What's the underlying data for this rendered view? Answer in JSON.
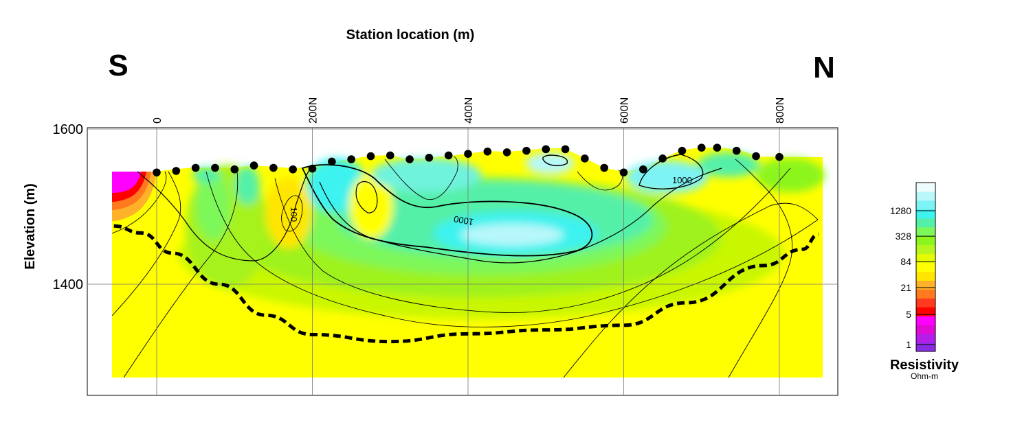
{
  "chart_data": {
    "type": "heatmap",
    "title": "Station location (m)",
    "ylabel": "Elevation (m)",
    "direction_left": "S",
    "direction_right": "N",
    "x_ticks": [
      "0",
      "200N",
      "400N",
      "600N",
      "800N"
    ],
    "x_tick_values": [
      0,
      200,
      400,
      600,
      800
    ],
    "y_ticks": [
      "1600",
      "1400"
    ],
    "y_tick_values": [
      1600,
      1400
    ],
    "xlim": [
      -90,
      890
    ],
    "ylim": [
      1265,
      1600
    ],
    "grid": true,
    "contour_labels": [
      {
        "text": "100",
        "x": 172,
        "y": 1490
      },
      {
        "text": "1000",
        "x": 395,
        "y": 1486
      },
      {
        "text": "1000",
        "x": 675,
        "y": 1530
      }
    ],
    "stations": [
      {
        "x": 0,
        "y": 1544
      },
      {
        "x": 25,
        "y": 1546
      },
      {
        "x": 50,
        "y": 1550
      },
      {
        "x": 75,
        "y": 1550
      },
      {
        "x": 100,
        "y": 1548
      },
      {
        "x": 125,
        "y": 1553
      },
      {
        "x": 150,
        "y": 1550
      },
      {
        "x": 175,
        "y": 1548
      },
      {
        "x": 200,
        "y": 1549
      },
      {
        "x": 225,
        "y": 1558
      },
      {
        "x": 250,
        "y": 1561
      },
      {
        "x": 275,
        "y": 1565
      },
      {
        "x": 300,
        "y": 1566
      },
      {
        "x": 325,
        "y": 1561
      },
      {
        "x": 350,
        "y": 1563
      },
      {
        "x": 375,
        "y": 1566
      },
      {
        "x": 400,
        "y": 1568
      },
      {
        "x": 425,
        "y": 1571
      },
      {
        "x": 450,
        "y": 1570
      },
      {
        "x": 475,
        "y": 1572
      },
      {
        "x": 500,
        "y": 1574
      },
      {
        "x": 525,
        "y": 1574
      },
      {
        "x": 550,
        "y": 1562
      },
      {
        "x": 575,
        "y": 1550
      },
      {
        "x": 600,
        "y": 1544
      },
      {
        "x": 625,
        "y": 1548
      },
      {
        "x": 650,
        "y": 1562
      },
      {
        "x": 675,
        "y": 1572
      },
      {
        "x": 700,
        "y": 1576
      },
      {
        "x": 720,
        "y": 1576
      },
      {
        "x": 745,
        "y": 1572
      },
      {
        "x": 770,
        "y": 1565
      },
      {
        "x": 800,
        "y": 1564
      }
    ],
    "interpreted_boundary": [
      {
        "x": -55,
        "y": 1475
      },
      {
        "x": -20,
        "y": 1466
      },
      {
        "x": 20,
        "y": 1440
      },
      {
        "x": 80,
        "y": 1400
      },
      {
        "x": 140,
        "y": 1360
      },
      {
        "x": 200,
        "y": 1335
      },
      {
        "x": 300,
        "y": 1326
      },
      {
        "x": 400,
        "y": 1336
      },
      {
        "x": 500,
        "y": 1341
      },
      {
        "x": 600,
        "y": 1347
      },
      {
        "x": 680,
        "y": 1376
      },
      {
        "x": 780,
        "y": 1424
      },
      {
        "x": 830,
        "y": 1445
      },
      {
        "x": 850,
        "y": 1464
      }
    ],
    "colorbar": {
      "title": "Resistivity",
      "unit": "Ohm-m",
      "tick_labels": [
        "1280",
        "328",
        "84",
        "21",
        "5",
        "1"
      ],
      "tick_values": [
        1280,
        328,
        84,
        21,
        5,
        1
      ],
      "colors": [
        "#8a2be2",
        "#b41ee8",
        "#e10ad2",
        "#ff00ff",
        "#ff0000",
        "#ff3a1f",
        "#ff7a1e",
        "#ffb12a",
        "#ffe600",
        "#ffff00",
        "#e4fb00",
        "#b7f51e",
        "#8cf51e",
        "#7df85a",
        "#55f0a8",
        "#3df2ef",
        "#7ef3f5",
        "#b8f8fa",
        "#eefcfd"
      ]
    }
  }
}
